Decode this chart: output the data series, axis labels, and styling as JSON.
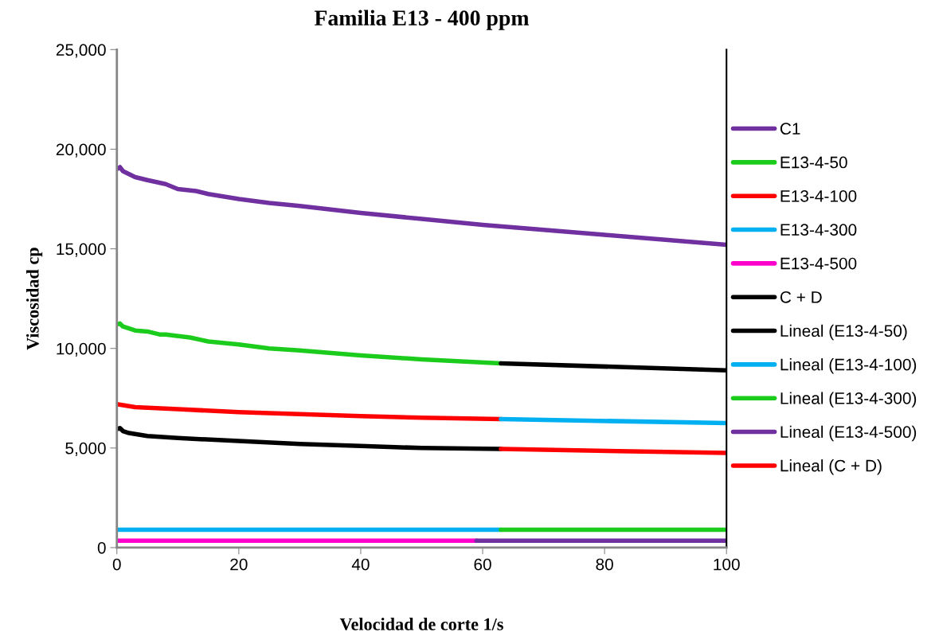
{
  "chart_data": {
    "type": "line",
    "title": "Familia E13 - 400 ppm",
    "xlabel": "Velocidad de corte 1/s",
    "ylabel": "Viscosidad cp",
    "xlim": [
      0,
      100
    ],
    "xticks": [
      0,
      20,
      40,
      60,
      80,
      100
    ],
    "ylim": [
      0,
      25000
    ],
    "yticks": [
      {
        "value": 0,
        "label": "0"
      },
      {
        "value": 5000,
        "label": "5,000"
      },
      {
        "value": 10000,
        "label": "10,000"
      },
      {
        "value": 15000,
        "label": "15,000"
      },
      {
        "value": 20000,
        "label": "20,000"
      },
      {
        "value": 25000,
        "label": "25,000"
      }
    ],
    "grid": false,
    "legend": "right",
    "marker": "none",
    "line_style": "solid",
    "series": [
      {
        "name": "C1",
        "color": "#7030a0",
        "x": [
          0,
          0.5,
          1,
          2,
          3,
          5,
          8,
          10,
          13,
          15,
          20,
          25,
          30,
          40,
          50,
          60,
          70,
          80,
          90,
          100
        ],
        "values": [
          19000,
          19100,
          18900,
          18750,
          18600,
          18450,
          18250,
          18000,
          17900,
          17750,
          17500,
          17300,
          17150,
          16800,
          16500,
          16200,
          15950,
          15700,
          15450,
          15200
        ]
      },
      {
        "name": "E13-4-50",
        "color": "#1ccc1c",
        "x": [
          0,
          0.5,
          1,
          2,
          3,
          5,
          7,
          8,
          12,
          15,
          20,
          25,
          30,
          40,
          50,
          63
        ],
        "values": [
          11200,
          11250,
          11100,
          11000,
          10900,
          10850,
          10700,
          10700,
          10550,
          10350,
          10200,
          10000,
          9900,
          9650,
          9450,
          9250
        ]
      },
      {
        "name": "E13-4-100",
        "color": "#ff0000",
        "x": [
          0,
          1,
          3,
          10,
          20,
          30,
          40,
          50,
          63
        ],
        "values": [
          7200,
          7150,
          7050,
          6950,
          6800,
          6700,
          6600,
          6520,
          6450
        ]
      },
      {
        "name": "E13-4-300",
        "color": "#00b0f0",
        "x": [
          0,
          63
        ],
        "values": [
          900,
          900
        ]
      },
      {
        "name": "E13-4-500",
        "color": "#ff00cc",
        "x": [
          0,
          59
        ],
        "values": [
          350,
          350
        ]
      },
      {
        "name": "C + D",
        "color": "#000000",
        "x": [
          0,
          0.5,
          1,
          2,
          5,
          10,
          20,
          30,
          40,
          50,
          63
        ],
        "values": [
          5950,
          6000,
          5850,
          5750,
          5600,
          5500,
          5350,
          5200,
          5100,
          5000,
          4950
        ]
      },
      {
        "name": "Lineal (E13-4-50)",
        "color": "#000000",
        "x": [
          63,
          100
        ],
        "values": [
          9250,
          8900
        ]
      },
      {
        "name": "Lineal (E13-4-100)",
        "color": "#00b0f0",
        "x": [
          63,
          100
        ],
        "values": [
          6450,
          6250
        ]
      },
      {
        "name": "Lineal (E13-4-300)",
        "color": "#1ccc1c",
        "x": [
          63,
          100
        ],
        "values": [
          900,
          900
        ]
      },
      {
        "name": "Lineal (E13-4-500)",
        "color": "#7030a0",
        "x": [
          59,
          100
        ],
        "values": [
          350,
          350
        ]
      },
      {
        "name": "Lineal (C + D)",
        "color": "#ff0000",
        "x": [
          63,
          100
        ],
        "values": [
          4950,
          4750
        ]
      }
    ]
  }
}
